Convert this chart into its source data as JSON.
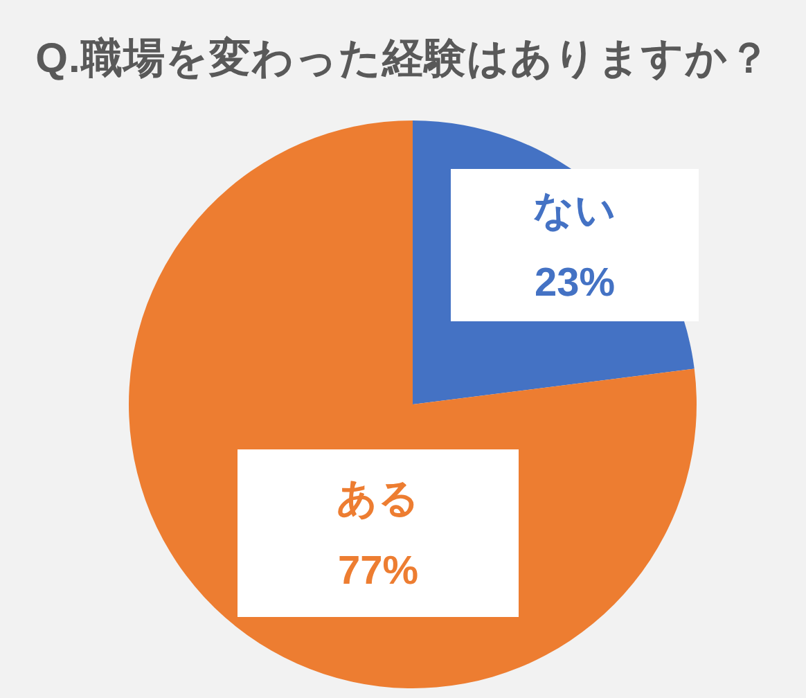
{
  "chart_data": {
    "type": "pie",
    "title": "Q.職場を変わった経験はありますか？",
    "categories": [
      "ない",
      "ある"
    ],
    "values": [
      23,
      77
    ],
    "colors": [
      "#4472c4",
      "#ed7d31"
    ],
    "value_labels": [
      "23%",
      "77%"
    ]
  }
}
